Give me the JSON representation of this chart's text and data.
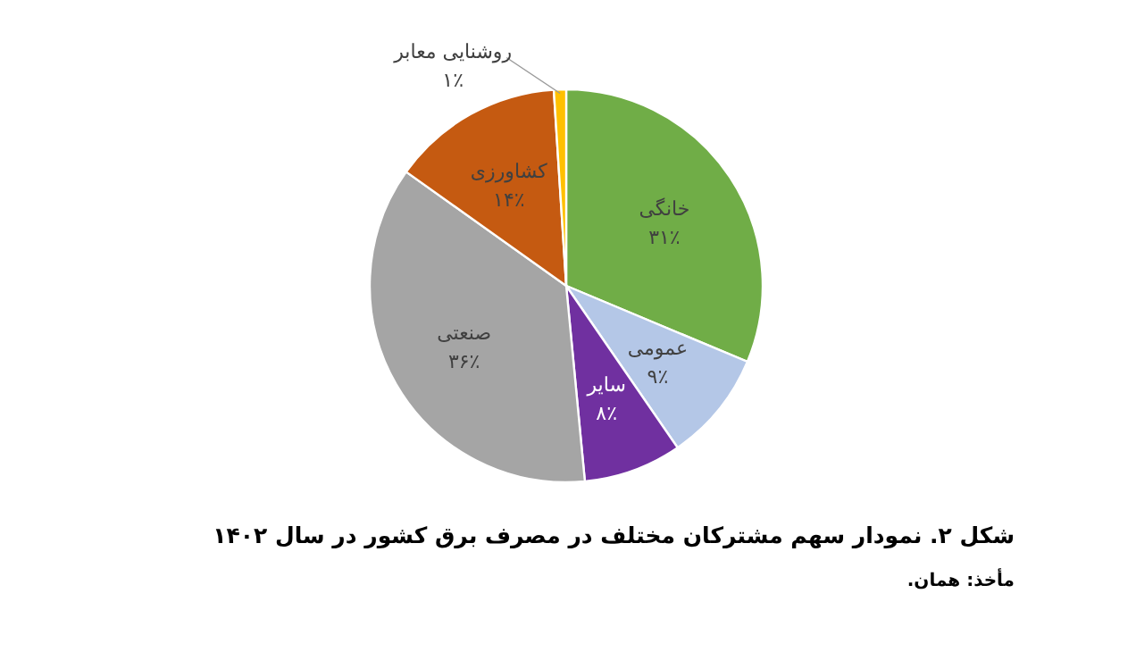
{
  "chart_data": {
    "type": "pie",
    "title": "شکل ۲. نمودار سهم مشترکان مختلف در مصرف برق کشور در سال ۱۴۰۲",
    "categories": [
      "خانگی",
      "عمومی",
      "سایر",
      "صنعتی",
      "کشاورزی",
      "روشنایی معابر"
    ],
    "values": [
      31,
      9,
      8,
      36,
      14,
      1
    ],
    "colors": [
      "#70ad47",
      "#b4c7e7",
      "#7030a0",
      "#a5a5a5",
      "#c55a11",
      "#ffc000"
    ],
    "value_labels": [
      "۳۱٪",
      "۹٪",
      "۸٪",
      "۳۶٪",
      "۱۴٪",
      "۱٪"
    ],
    "annotations": [
      "مأخذ: همان."
    ]
  }
}
